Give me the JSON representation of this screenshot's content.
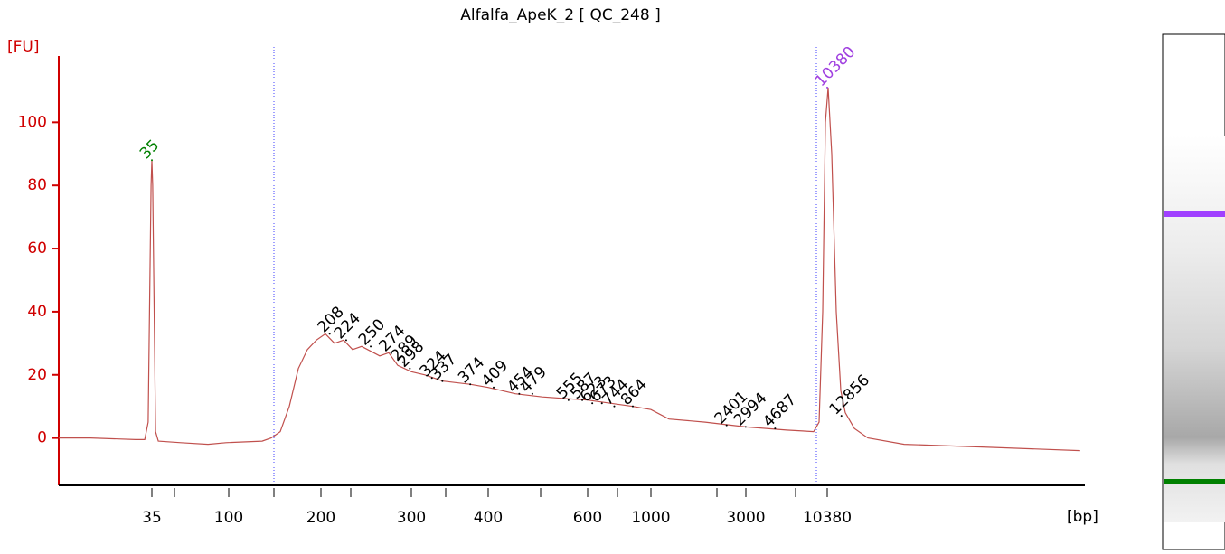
{
  "chart_data": {
    "type": "line",
    "title": "Alfalfa_ApeK_2  [ QC_248 ]",
    "y_label": "[FU]",
    "x_label": "[bp]",
    "color": "#c0504d",
    "xlim": [
      10,
      500000
    ],
    "xticks": [
      35,
      100,
      200,
      300,
      400,
      600,
      1000,
      3000,
      10380
    ],
    "ylim": [
      -15,
      121
    ],
    "yticks": [
      0,
      20,
      40,
      60,
      80,
      100
    ],
    "x": [
      10,
      15.3,
      28.1,
      31.8,
      33.3,
      34.6,
      35,
      35.4,
      36.8,
      38.2,
      52,
      75.4,
      96.3,
      128.6,
      137.6,
      147.3,
      157.7,
      168.8,
      180.6,
      193.3,
      204,
      212.5,
      221.3,
      230.5,
      240,
      260.3,
      271.1,
      282.3,
      300,
      315.6,
      337.7,
      373.8,
      400,
      446.8,
      499,
      600,
      864,
      1000,
      1233,
      1873,
      3000,
      5580,
      8440,
      9170,
      9690,
      10100,
      10520,
      11110,
      11890,
      12730,
      13620,
      15610,
      19140,
      33000,
      128700,
      466000
    ],
    "values": [
      0,
      0,
      -0.5,
      -0.5,
      5,
      80,
      88,
      80,
      2,
      -1,
      -1.5,
      -2,
      -1.5,
      -1,
      0,
      2,
      10,
      22,
      28,
      31,
      33,
      30,
      31,
      28,
      29,
      26,
      27,
      23,
      21,
      20,
      18,
      17,
      16,
      14,
      13,
      12,
      10,
      9,
      6,
      5,
      3.5,
      2.5,
      2,
      5,
      40,
      100,
      111,
      90,
      40,
      15,
      8,
      3,
      0,
      -2,
      -3,
      -4
    ],
    "peaks": [
      {
        "x": 35,
        "y": 88,
        "color": "#008000"
      },
      {
        "x": 208,
        "y": 33,
        "color": "#000000"
      },
      {
        "x": 224,
        "y": 31,
        "color": "#000000"
      },
      {
        "x": 250,
        "y": 29,
        "color": "#000000"
      },
      {
        "x": 274,
        "y": 27,
        "color": "#000000"
      },
      {
        "x": 289,
        "y": 24,
        "color": "#000000"
      },
      {
        "x": 298,
        "y": 22,
        "color": "#000000"
      },
      {
        "x": 324,
        "y": 19,
        "color": "#000000"
      },
      {
        "x": 337,
        "y": 18,
        "color": "#000000"
      },
      {
        "x": 374,
        "y": 17,
        "color": "#000000"
      },
      {
        "x": 409,
        "y": 16,
        "color": "#000000"
      },
      {
        "x": 454,
        "y": 14,
        "color": "#000000"
      },
      {
        "x": 479,
        "y": 14,
        "color": "#000000"
      },
      {
        "x": 555,
        "y": 12,
        "color": "#000000"
      },
      {
        "x": 587,
        "y": 12,
        "color": "#000000"
      },
      {
        "x": 623,
        "y": 11,
        "color": "#000000"
      },
      {
        "x": 673,
        "y": 11,
        "color": "#000000"
      },
      {
        "x": 744,
        "y": 10,
        "color": "#000000"
      },
      {
        "x": 864,
        "y": 10,
        "color": "#000000"
      },
      {
        "x": 2401,
        "y": 4,
        "color": "#000000"
      },
      {
        "x": 2994,
        "y": 3.5,
        "color": "#000000"
      },
      {
        "x": 4687,
        "y": 3,
        "color": "#000000"
      },
      {
        "x": 10380,
        "y": 111,
        "color": "#a040e0"
      },
      {
        "x": 12856,
        "y": 7,
        "color": "#000000"
      }
    ]
  }
}
